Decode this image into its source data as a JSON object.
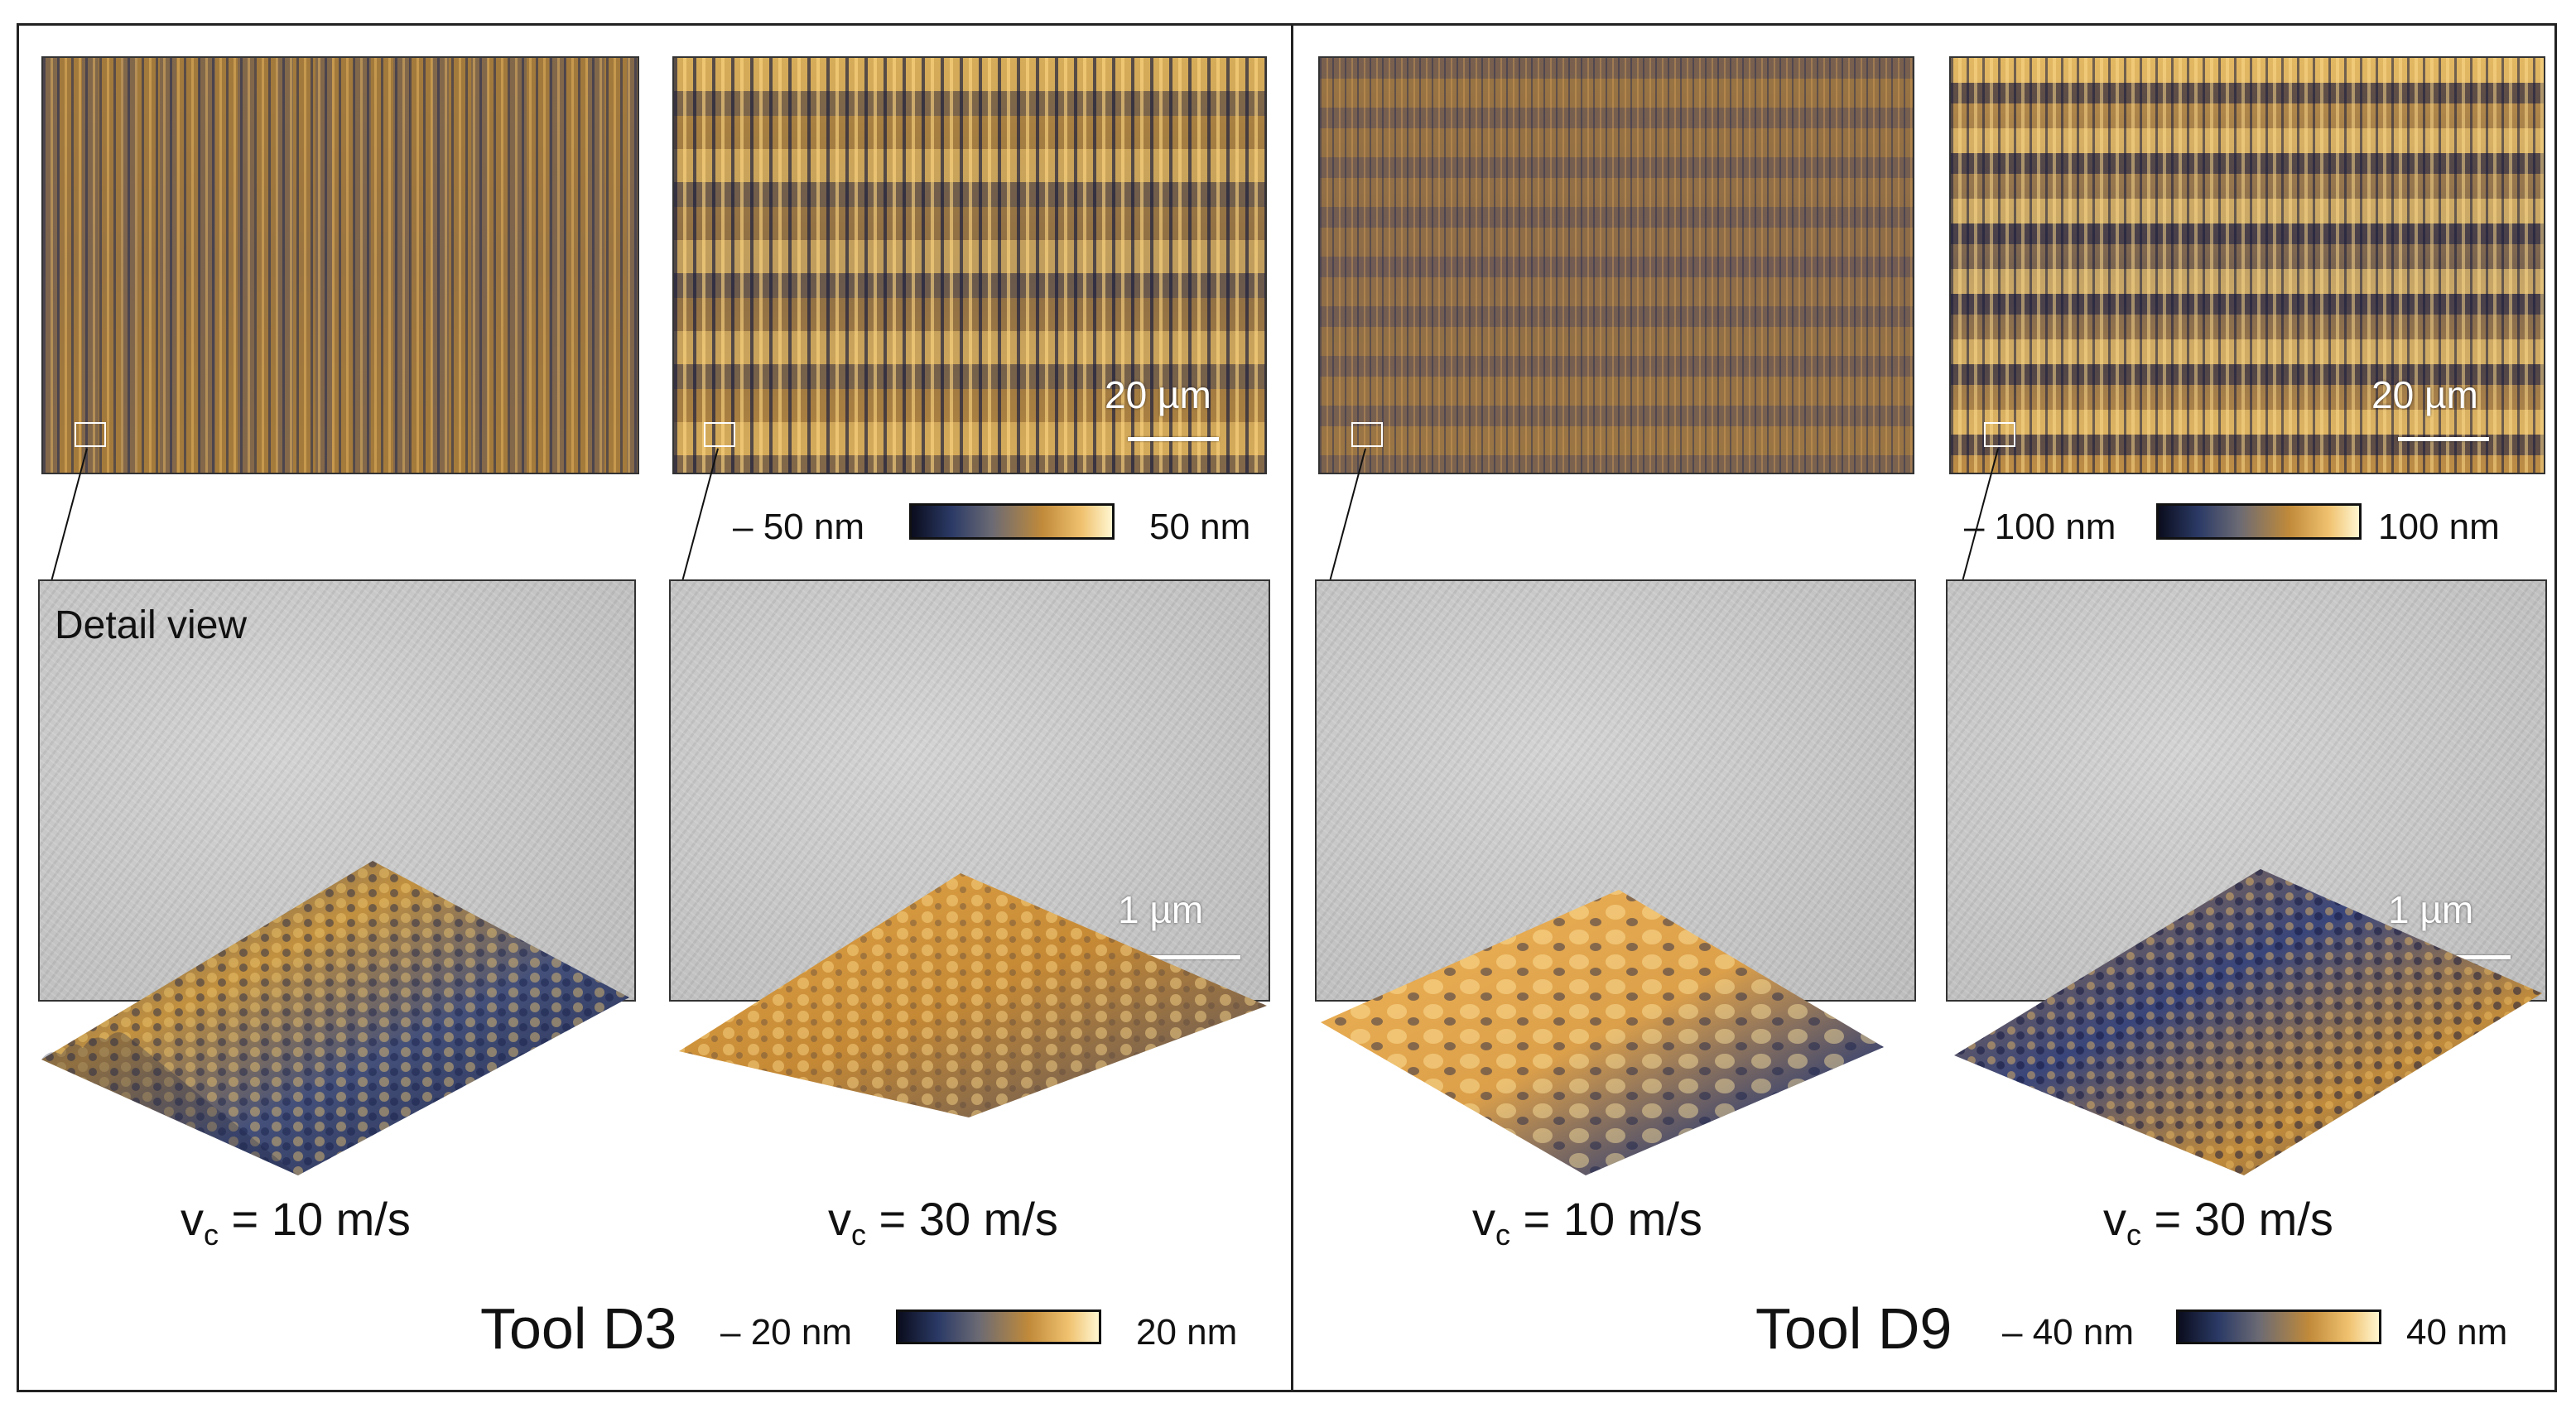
{
  "panels": [
    {
      "tool_label": "Tool D3",
      "overview_scale": "20 µm",
      "overview_colorbar": {
        "min_label": "– 50 nm",
        "max_label": "50 nm"
      },
      "detail_title": "Detail view",
      "detail_scale": "1 µm",
      "speeds": [
        {
          "v": "v",
          "sub": "c",
          "rest": " = 10 m/s"
        },
        {
          "v": "v",
          "sub": "c",
          "rest": " = 30 m/s"
        }
      ],
      "height_colorbar": {
        "min_label": "– 20 nm",
        "max_label": "20 nm"
      }
    },
    {
      "tool_label": "Tool D9",
      "overview_scale": "20 µm",
      "overview_colorbar": {
        "min_label": "– 100 nm",
        "max_label": "100 nm"
      },
      "detail_scale": "1 µm",
      "speeds": [
        {
          "v": "v",
          "sub": "c",
          "rest": " = 10 m/s"
        },
        {
          "v": "v",
          "sub": "c",
          "rest": " = 30 m/s"
        }
      ],
      "height_colorbar": {
        "min_label": "– 40 nm",
        "max_label": "40 nm"
      }
    }
  ],
  "colormap": [
    "#0b0d1e",
    "#2b3a66",
    "#6b6a74",
    "#c08a3a",
    "#f0c270",
    "#fff6d0"
  ]
}
